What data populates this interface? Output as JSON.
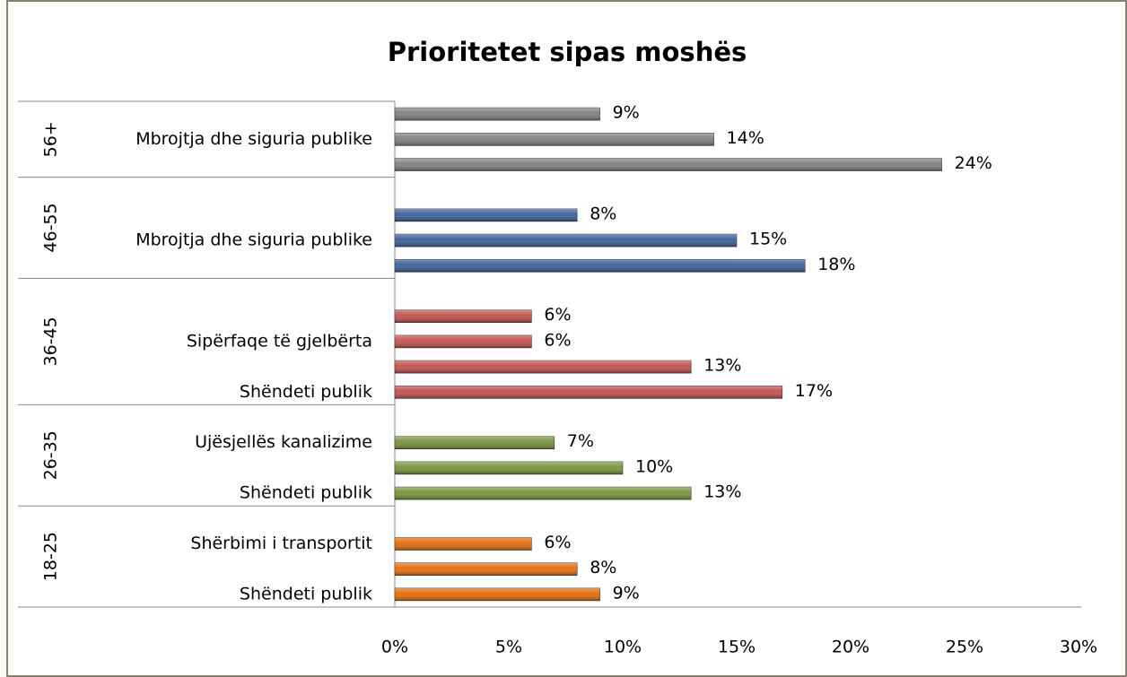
{
  "chart_data": {
    "type": "bar",
    "title": "Prioritetet sipas moshës",
    "xlim": [
      0,
      30
    ],
    "xticks": [
      {
        "value": 0,
        "label": "0%"
      },
      {
        "value": 5,
        "label": "5%"
      },
      {
        "value": 10,
        "label": "10%"
      },
      {
        "value": 15,
        "label": "15%"
      },
      {
        "value": 20,
        "label": "20%"
      },
      {
        "value": 25,
        "label": "25%"
      },
      {
        "value": 30,
        "label": "30%"
      }
    ],
    "groups": [
      {
        "name": "56+",
        "color": "#808080",
        "categories": [
          null,
          "Mbrojtja dhe siguria publike",
          null
        ],
        "values": [
          9,
          14,
          24
        ],
        "value_labels": [
          "9%",
          "14%",
          "24%"
        ]
      },
      {
        "name": "46-55",
        "color": "#3b5e98",
        "categories": [
          null,
          "Mbrojtja dhe siguria publike",
          null
        ],
        "values": [
          8,
          15,
          18
        ],
        "value_labels": [
          "8%",
          "15%",
          "18%"
        ]
      },
      {
        "name": "36-45",
        "color": "#c0504d",
        "categories": [
          null,
          "Sipërfaqe të gjelbërta",
          null,
          "Shëndeti publik"
        ],
        "values": [
          6,
          6,
          13,
          17
        ],
        "value_labels": [
          "6%",
          "6%",
          "13%",
          "17%"
        ]
      },
      {
        "name": "26-35",
        "color": "#77933c",
        "categories": [
          "Ujësjellës kanalizime",
          null,
          "Shëndeti publik"
        ],
        "values": [
          7,
          10,
          13
        ],
        "value_labels": [
          "7%",
          "10%",
          "13%"
        ]
      },
      {
        "name": "18-25",
        "color": "#e46c0a",
        "categories": [
          "Shërbimi i transportit",
          null,
          "Shëndeti publik"
        ],
        "values": [
          6,
          8,
          9
        ],
        "value_labels": [
          "6%",
          "8%",
          "9%"
        ]
      }
    ]
  }
}
